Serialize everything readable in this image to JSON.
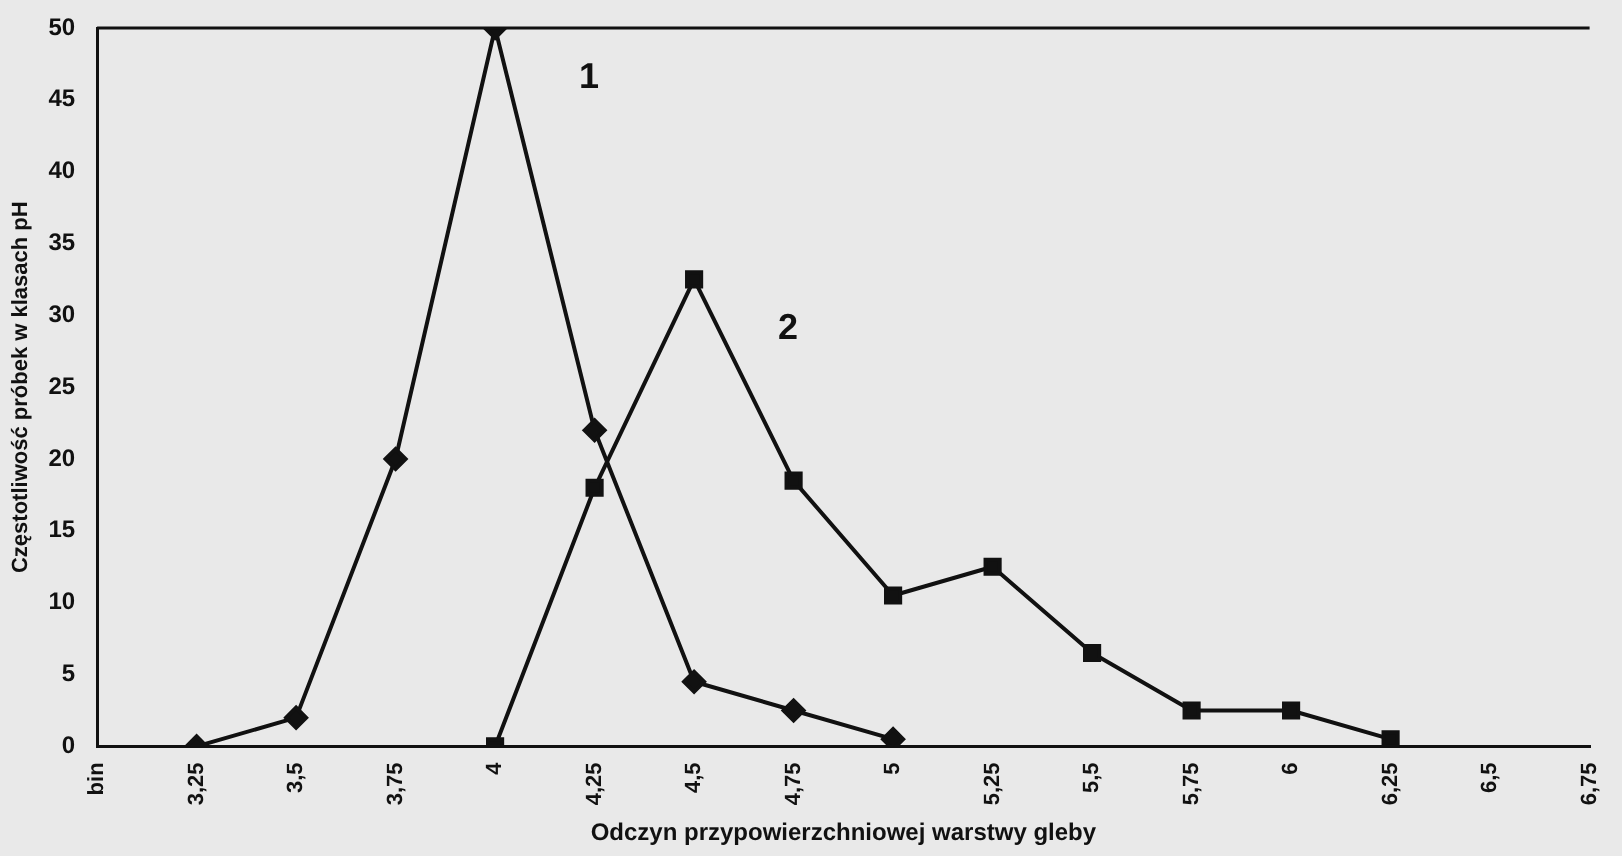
{
  "chart_data": {
    "type": "line",
    "xlabel": "Odczyn przypowierzchniowej warstwy gleby",
    "ylabel": "Częstotliwość próbek w klasach pH",
    "categories": [
      "bin",
      "3,25",
      "3,5",
      "3,75",
      "4",
      "4,25",
      "4,5",
      "4,75",
      "5",
      "5,25",
      "5,5",
      "5,75",
      "6",
      "6,25",
      "6,5",
      "6,75"
    ],
    "series": [
      {
        "name": "1",
        "color": "#111111",
        "marker": "diamond",
        "values": [
          null,
          0,
          2,
          20,
          50,
          22,
          4.5,
          2.5,
          0.5,
          null,
          null,
          null,
          null,
          null,
          null,
          null
        ]
      },
      {
        "name": "2",
        "color": "#111111",
        "marker": "square",
        "values": [
          null,
          null,
          null,
          null,
          0,
          18,
          32.5,
          18.5,
          10.5,
          12.5,
          6.5,
          2.5,
          2.5,
          0.5,
          null,
          null
        ]
      }
    ],
    "ylim": [
      0,
      50
    ],
    "yticks": [
      0,
      5,
      10,
      15,
      20,
      25,
      30,
      35,
      40,
      45,
      50
    ],
    "grid": false,
    "legend": false,
    "line_style": "solid"
  }
}
